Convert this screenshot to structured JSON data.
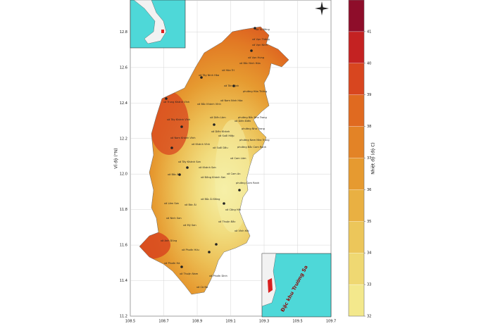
{
  "map": {
    "ylabel": "Vĩ độ (°N)",
    "xlim": [
      108.5,
      109.7
    ],
    "ylim": [
      11.2,
      12.98
    ],
    "xticks": [
      108.5,
      108.7,
      108.9,
      109.1,
      109.3,
      109.5,
      109.7
    ],
    "yticks": [
      11.2,
      11.4,
      11.6,
      11.8,
      {
        "value": 12,
        "label": "12.0"
      },
      12.2,
      12.4,
      12.6,
      12.8
    ],
    "inset_label": "Đặc khu Trường Sa",
    "places": [
      "xã Tu Bông",
      "xã Vạn Thắng",
      "xã Vạn Ninh",
      "xã Vạn Hưng",
      "xã Bắc Ninh Hòa",
      "xã Hòa Trí",
      "xã Tây Ninh Hòa",
      "xã Tân Định",
      "phường Hòa Thắng",
      "xã Nam Ninh Hòa",
      "xã Trung Khánh Vĩnh",
      "xã Bắc Khánh Vĩnh",
      "xã Diên Lâm",
      "phường Bắc Nha Trang",
      "xã Diên Điền",
      "xã Tây Khánh Vĩnh",
      "xã Diên Khánh",
      "phường Nha Trang",
      "xã Suối Hiệp",
      "xã Nam Khánh Vĩnh",
      "phường Nam Nha Trang",
      "xã Khánh Vĩnh",
      "xã Suối Dầu",
      "phường Bắc Cam Ranh",
      "xã Cam Lâm",
      "xã Tây Khánh Sơn",
      "xã Khánh Sơn",
      "xã Cam An",
      "xã Bắc Ái",
      "xã Đông Khánh Sơn",
      "phường Cam Ranh",
      "xã Bắc Ái Đông",
      "xã Lâm Sơn",
      "xã Bác Ái",
      "xã Công Hải",
      "xã Ninh Sơn",
      "xã Thuận Bắc",
      "xã Mỹ Sơn",
      "xã Vĩnh Hải",
      "xã Anh Dũng",
      "xã Phước Hữu",
      "xã Phước Hà",
      "xã Thuận Nam",
      "xã Phước Dinh",
      "xã Cà Ná"
    ]
  },
  "colorbar": {
    "label": "Nhiệt độ (độ C)",
    "range": [
      32,
      42
    ],
    "ticks": [
      32,
      33,
      34,
      35,
      36,
      37,
      38,
      39,
      40,
      41
    ],
    "colors": [
      "#f3e88c",
      "#efd872",
      "#ecc65a",
      "#e9b042",
      "#e69a30",
      "#e38326",
      "#e06a20",
      "#d8461f",
      "#c42222",
      "#8e0d2a"
    ]
  }
}
